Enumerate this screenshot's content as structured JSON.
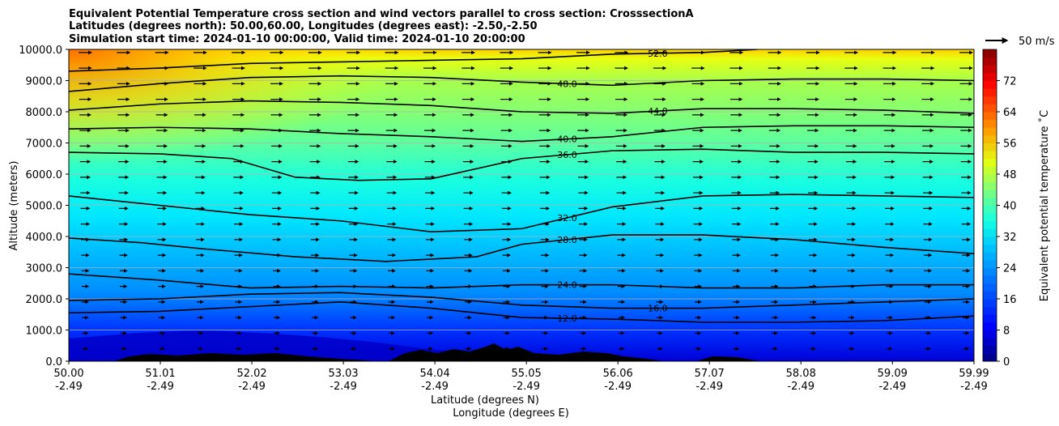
{
  "chart_data": {
    "type": "heatmap",
    "title_lines": [
      "Equivalent Potential Temperature cross section and wind vectors parallel to cross section: CrosssectionA",
      "Latitudes (degrees north): 50.00,60.00, Longitudes (degrees east): -2.50,-2.50",
      "Simulation start time: 2024-01-10 00:00:00, Valid time: 2024-01-10 20:00:00"
    ],
    "xlabel_lat": "Latitude (degrees N)",
    "xlabel_lon": "Longitude (degrees E)",
    "ylabel": "Altitude (meters)",
    "x_ticks": [
      {
        "lat": "50.00",
        "lon": "-2.49",
        "v": 50.0
      },
      {
        "lat": "51.01",
        "lon": "-2.49",
        "v": 51.01
      },
      {
        "lat": "52.02",
        "lon": "-2.49",
        "v": 52.02
      },
      {
        "lat": "53.03",
        "lon": "-2.49",
        "v": 53.03
      },
      {
        "lat": "54.04",
        "lon": "-2.49",
        "v": 54.04
      },
      {
        "lat": "55.05",
        "lon": "-2.49",
        "v": 55.05
      },
      {
        "lat": "56.06",
        "lon": "-2.49",
        "v": 56.06
      },
      {
        "lat": "57.07",
        "lon": "-2.49",
        "v": 57.07
      },
      {
        "lat": "58.08",
        "lon": "-2.49",
        "v": 58.08
      },
      {
        "lat": "59.09",
        "lon": "-2.49",
        "v": 59.09
      },
      {
        "lat": "59.99",
        "lon": "-2.49",
        "v": 59.99
      }
    ],
    "xlim": [
      50.0,
      59.99
    ],
    "y_ticks": [
      "0.0",
      "1000.0",
      "2000.0",
      "3000.0",
      "4000.0",
      "5000.0",
      "6000.0",
      "7000.0",
      "8000.0",
      "9000.0",
      "10000.0"
    ],
    "ylim": [
      0,
      10000
    ],
    "grid": "horizontal",
    "colorbar": {
      "label": "Equivalent potential temperature ˚C",
      "min": 0,
      "max": 80,
      "step": 2,
      "ticks": [
        "0",
        "8",
        "16",
        "24",
        "32",
        "40",
        "48",
        "56",
        "64",
        "72"
      ]
    },
    "quiver_key": "50 m/s",
    "contours": [
      {
        "level": "12.0",
        "points": [
          [
            50.0,
            1550
          ],
          [
            51.0,
            1600
          ],
          [
            52.0,
            1750
          ],
          [
            53.0,
            1900
          ],
          [
            54.0,
            1700
          ],
          [
            55.0,
            1400
          ],
          [
            56.0,
            1350
          ],
          [
            57.0,
            1250
          ],
          [
            58.0,
            1250
          ],
          [
            59.0,
            1300
          ],
          [
            59.99,
            1450
          ]
        ]
      },
      {
        "level": "16.0",
        "points": [
          [
            50.0,
            1950
          ],
          [
            51.0,
            2000
          ],
          [
            52.0,
            2150
          ],
          [
            53.0,
            2200
          ],
          [
            54.0,
            2050
          ],
          [
            55.0,
            1800
          ],
          [
            56.0,
            1700
          ],
          [
            57.0,
            1700
          ],
          [
            58.0,
            1800
          ],
          [
            59.0,
            1900
          ],
          [
            59.99,
            2000
          ]
        ]
      },
      {
        "level": "24.0",
        "points": [
          [
            50.0,
            2800
          ],
          [
            51.0,
            2600
          ],
          [
            52.0,
            2350
          ],
          [
            53.0,
            2400
          ],
          [
            54.0,
            2350
          ],
          [
            55.0,
            2450
          ],
          [
            56.0,
            2450
          ],
          [
            57.0,
            2350
          ],
          [
            58.0,
            2350
          ],
          [
            59.0,
            2450
          ],
          [
            59.99,
            2450
          ]
        ]
      },
      {
        "level": "28.0",
        "points": [
          [
            50.0,
            3950
          ],
          [
            50.8,
            3800
          ],
          [
            51.5,
            3600
          ],
          [
            52.5,
            3350
          ],
          [
            53.5,
            3200
          ],
          [
            54.5,
            3350
          ],
          [
            55.0,
            3750
          ],
          [
            56.0,
            4050
          ],
          [
            57.0,
            4050
          ],
          [
            58.0,
            3900
          ],
          [
            59.0,
            3650
          ],
          [
            59.99,
            3450
          ]
        ]
      },
      {
        "level": "32.0",
        "points": [
          [
            50.0,
            5300
          ],
          [
            51.0,
            5000
          ],
          [
            52.0,
            4700
          ],
          [
            53.0,
            4500
          ],
          [
            54.0,
            4150
          ],
          [
            55.0,
            4250
          ],
          [
            56.0,
            4950
          ],
          [
            57.0,
            5300
          ],
          [
            58.0,
            5350
          ],
          [
            59.0,
            5300
          ],
          [
            59.99,
            5250
          ]
        ]
      },
      {
        "level": "36.0",
        "points": [
          [
            50.0,
            6700
          ],
          [
            51.0,
            6650
          ],
          [
            51.8,
            6500
          ],
          [
            52.5,
            5900
          ],
          [
            53.2,
            5800
          ],
          [
            54.0,
            5850
          ],
          [
            55.0,
            6500
          ],
          [
            56.0,
            6750
          ],
          [
            57.0,
            6800
          ],
          [
            58.0,
            6700
          ],
          [
            59.0,
            6700
          ],
          [
            59.99,
            6650
          ]
        ]
      },
      {
        "level": "40.0",
        "points": [
          [
            50.0,
            7450
          ],
          [
            51.0,
            7500
          ],
          [
            52.0,
            7450
          ],
          [
            53.0,
            7300
          ],
          [
            54.0,
            7200
          ],
          [
            55.0,
            7050
          ],
          [
            56.0,
            7200
          ],
          [
            57.0,
            7500
          ],
          [
            58.0,
            7550
          ],
          [
            59.0,
            7550
          ],
          [
            59.99,
            7500
          ]
        ]
      },
      {
        "level": "44.0",
        "points": [
          [
            50.0,
            8050
          ],
          [
            51.0,
            8250
          ],
          [
            52.0,
            8350
          ],
          [
            53.0,
            8300
          ],
          [
            54.0,
            8200
          ],
          [
            55.0,
            8000
          ],
          [
            56.0,
            7950
          ],
          [
            57.0,
            8100
          ],
          [
            58.0,
            8100
          ],
          [
            59.0,
            8050
          ],
          [
            59.99,
            7950
          ]
        ]
      },
      {
        "level": "48.0",
        "points": [
          [
            50.0,
            8650
          ],
          [
            51.0,
            8900
          ],
          [
            52.0,
            9100
          ],
          [
            53.0,
            9150
          ],
          [
            54.0,
            9100
          ],
          [
            55.0,
            8950
          ],
          [
            56.0,
            8850
          ],
          [
            57.0,
            9000
          ],
          [
            58.0,
            9050
          ],
          [
            59.0,
            9050
          ],
          [
            59.99,
            9000
          ]
        ]
      },
      {
        "level": "52.0",
        "points": [
          [
            50.0,
            9300
          ],
          [
            51.0,
            9400
          ],
          [
            52.0,
            9550
          ],
          [
            53.0,
            9600
          ],
          [
            54.0,
            9650
          ],
          [
            55.0,
            9700
          ],
          [
            56.0,
            9850
          ],
          [
            57.0,
            9900
          ],
          [
            57.6,
            10000
          ]
        ]
      }
    ]
  }
}
